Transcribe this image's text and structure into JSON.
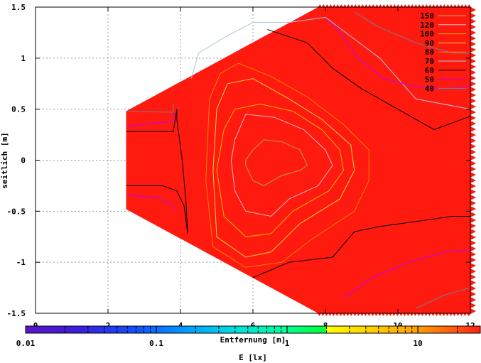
{
  "chart_data": {
    "type": "contour",
    "xlabel": "Entfernung [m]",
    "ylabel": "seitlich [m]",
    "colorbar_label": "E [lx]",
    "xlim": [
      0,
      12
    ],
    "ylim": [
      -1.5,
      1.5
    ],
    "x_ticks": [
      "0",
      "2",
      "4",
      "6",
      "8",
      "10",
      "12"
    ],
    "y_ticks": [
      "1.5",
      "1",
      "0.5",
      "0",
      "-0.5",
      "-1",
      "-1.5"
    ],
    "colorbar_ticks": [
      "0.01",
      "0.1",
      "1",
      "10"
    ],
    "colorbar_range": [
      0.01,
      30
    ],
    "colorbar_scale": "log",
    "grid": true,
    "legend_position": "top-right",
    "fill_color": "#ff1a10",
    "region_vertices": [
      [
        2.5,
        0.48
      ],
      [
        7.8,
        1.5
      ],
      [
        12,
        1.5
      ],
      [
        12,
        -1.5
      ],
      [
        7.8,
        -1.5
      ],
      [
        2.5,
        -0.48
      ]
    ],
    "levels": [
      {
        "value": 150,
        "label": "150",
        "color": "#b8a050"
      },
      {
        "value": 120,
        "label": "120",
        "color": "#ffb6c1"
      },
      {
        "value": 100,
        "label": "100",
        "color": "#ffb000"
      },
      {
        "value": 90,
        "label": "90",
        "color": "#ffd040"
      },
      {
        "value": 80,
        "label": "80",
        "color": "#ff8000"
      },
      {
        "value": 70,
        "label": "70",
        "color": "#b0c4de"
      },
      {
        "value": 60,
        "label": "60",
        "color": "#000000"
      },
      {
        "value": 50,
        "label": "50",
        "color": "#c000ff"
      },
      {
        "value": 40,
        "label": "40",
        "color": "#708090"
      }
    ],
    "contours": [
      {
        "level": 150,
        "points": [
          [
            5.8,
            0.0
          ],
          [
            6.0,
            0.1
          ],
          [
            6.3,
            0.2
          ],
          [
            6.8,
            0.18
          ],
          [
            7.3,
            0.1
          ],
          [
            7.5,
            -0.05
          ],
          [
            7.3,
            -0.1
          ],
          [
            6.8,
            -0.15
          ],
          [
            6.3,
            -0.25
          ],
          [
            6.0,
            -0.2
          ],
          [
            5.8,
            -0.05
          ],
          [
            5.8,
            0.0
          ]
        ]
      },
      {
        "level": 120,
        "points": [
          [
            5.5,
            0.2
          ],
          [
            5.8,
            0.45
          ],
          [
            6.6,
            0.42
          ],
          [
            7.4,
            0.3
          ],
          [
            8.0,
            0.1
          ],
          [
            8.2,
            -0.05
          ],
          [
            7.8,
            -0.25
          ],
          [
            7.0,
            -0.38
          ],
          [
            6.5,
            -0.55
          ],
          [
            5.8,
            -0.5
          ],
          [
            5.5,
            -0.3
          ],
          [
            5.4,
            0.0
          ],
          [
            5.5,
            0.2
          ]
        ]
      },
      {
        "level": 100,
        "points": [
          [
            5.2,
            0.3
          ],
          [
            5.5,
            0.5
          ],
          [
            6.2,
            0.55
          ],
          [
            7.1,
            0.48
          ],
          [
            7.9,
            0.3
          ],
          [
            8.4,
            0.1
          ],
          [
            8.5,
            -0.1
          ],
          [
            8.1,
            -0.3
          ],
          [
            7.1,
            -0.5
          ],
          [
            6.5,
            -0.72
          ],
          [
            5.8,
            -0.75
          ],
          [
            5.2,
            -0.55
          ],
          [
            5.0,
            -0.1
          ],
          [
            5.2,
            0.3
          ]
        ]
      },
      {
        "level": 90,
        "points": [
          [
            5.0,
            0.5
          ],
          [
            5.3,
            0.75
          ],
          [
            6.0,
            0.8
          ],
          [
            7.0,
            0.6
          ],
          [
            7.9,
            0.4
          ],
          [
            8.7,
            0.15
          ],
          [
            8.8,
            -0.1
          ],
          [
            8.4,
            -0.38
          ],
          [
            7.3,
            -0.62
          ],
          [
            6.5,
            -0.9
          ],
          [
            5.8,
            -0.95
          ],
          [
            5.0,
            -0.75
          ],
          [
            4.9,
            -0.1
          ],
          [
            5.0,
            0.5
          ]
        ]
      },
      {
        "level": 80,
        "points": [
          [
            4.8,
            0.6
          ],
          [
            5.1,
            0.85
          ],
          [
            5.6,
            0.95
          ],
          [
            6.5,
            0.82
          ],
          [
            7.5,
            0.62
          ],
          [
            8.5,
            0.35
          ],
          [
            9.2,
            0.1
          ],
          [
            9.2,
            -0.2
          ],
          [
            8.8,
            -0.5
          ],
          [
            7.6,
            -0.78
          ],
          [
            6.8,
            -1.0
          ],
          [
            5.8,
            -1.05
          ],
          [
            4.9,
            -0.85
          ],
          [
            4.7,
            -0.2
          ],
          [
            4.8,
            0.6
          ]
        ]
      },
      {
        "level": 70,
        "points": [
          [
            4.3,
            0.8
          ],
          [
            4.5,
            1.05
          ],
          [
            5.2,
            1.2
          ],
          [
            6.0,
            1.35
          ],
          [
            7.0,
            1.35
          ],
          [
            8.0,
            1.4
          ],
          [
            9.5,
            1.0
          ],
          [
            10.5,
            0.6
          ],
          [
            12.0,
            0.5
          ]
        ]
      },
      {
        "level": 60,
        "points": [
          [
            2.5,
            0.28
          ],
          [
            3.8,
            0.28
          ],
          [
            3.9,
            0.5
          ],
          [
            3.9,
            0.4
          ],
          [
            4.05,
            0.0
          ],
          [
            4.15,
            -0.4
          ],
          [
            4.2,
            -0.72
          ]
        ]
      },
      {
        "level": 60,
        "points": [
          [
            6.4,
            1.28
          ],
          [
            7.5,
            1.15
          ],
          [
            8.2,
            0.9
          ],
          [
            9.0,
            0.7
          ],
          [
            10.0,
            0.5
          ],
          [
            11.0,
            0.3
          ],
          [
            12.0,
            0.43
          ]
        ]
      },
      {
        "level": 60,
        "points": [
          [
            2.5,
            -0.25
          ],
          [
            3.5,
            -0.25
          ],
          [
            3.9,
            -0.3
          ],
          [
            4.1,
            -0.45
          ],
          [
            4.2,
            -0.72
          ]
        ]
      },
      {
        "level": 60,
        "points": [
          [
            6.0,
            -1.15
          ],
          [
            7.0,
            -1.0
          ],
          [
            8.2,
            -0.95
          ],
          [
            8.8,
            -0.7
          ],
          [
            9.5,
            -0.65
          ],
          [
            10.5,
            -0.6
          ],
          [
            11.5,
            -0.55
          ],
          [
            12.0,
            -0.55
          ]
        ]
      },
      {
        "level": 50,
        "points": [
          [
            2.5,
            0.33
          ],
          [
            3.2,
            0.36
          ],
          [
            3.8,
            0.38
          ],
          [
            3.8,
            0.48
          ]
        ]
      },
      {
        "level": 50,
        "points": [
          [
            8.0,
            1.38
          ],
          [
            8.3,
            1.3
          ],
          [
            8.9,
            1.0
          ],
          [
            9.6,
            0.8
          ],
          [
            10.5,
            0.72
          ],
          [
            11.3,
            0.7
          ],
          [
            12.0,
            0.73
          ]
        ]
      },
      {
        "level": 50,
        "points": [
          [
            2.5,
            -0.34
          ],
          [
            3.4,
            -0.37
          ],
          [
            3.7,
            -0.42
          ],
          [
            3.9,
            -0.5
          ]
        ]
      },
      {
        "level": 50,
        "points": [
          [
            8.5,
            -1.35
          ],
          [
            9.3,
            -1.15
          ],
          [
            10.3,
            -1.0
          ],
          [
            11.3,
            -0.9
          ],
          [
            12.0,
            -0.88
          ]
        ]
      },
      {
        "level": 40,
        "points": [
          [
            2.5,
            0.48
          ],
          [
            3.8,
            0.47
          ],
          [
            3.8,
            0.55
          ]
        ]
      },
      {
        "level": 40,
        "points": [
          [
            8.8,
            1.45
          ],
          [
            9.5,
            1.3
          ],
          [
            10.5,
            1.15
          ],
          [
            11.5,
            1.05
          ],
          [
            12.0,
            1.05
          ]
        ]
      },
      {
        "level": 40,
        "points": [
          [
            10.5,
            -1.45
          ],
          [
            11.3,
            -1.32
          ],
          [
            12.0,
            -1.25
          ]
        ]
      }
    ]
  }
}
